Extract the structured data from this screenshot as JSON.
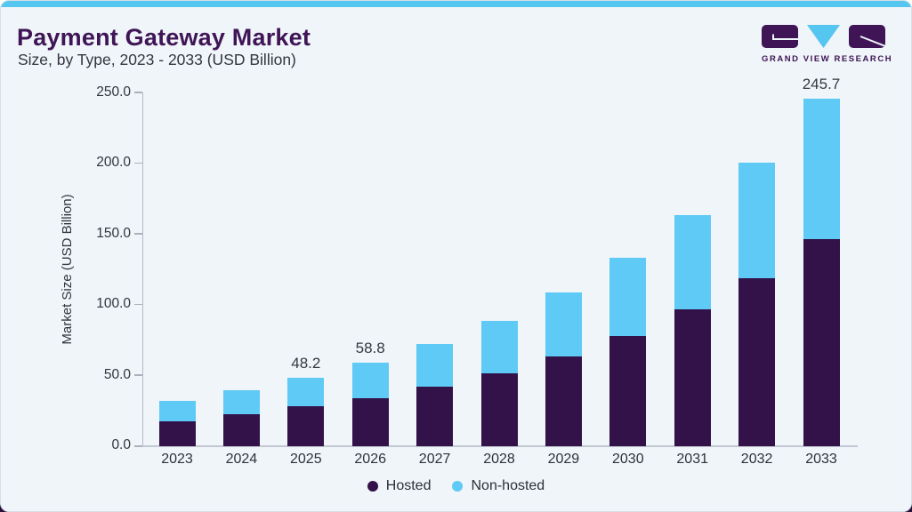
{
  "header": {
    "title": "Payment Gateway Market",
    "subtitle": "Size, by Type, 2023 - 2033 (USD Billion)"
  },
  "logo": {
    "text": "GRAND VIEW RESEARCH",
    "mark_color": "#3f1556",
    "triangle_color": "#55c6f0"
  },
  "chart_data": {
    "type": "bar",
    "stacked": true,
    "title": "Payment Gateway Market Size, by Type, 2023 - 2033 (USD Billion)",
    "categories": [
      "2023",
      "2024",
      "2025",
      "2026",
      "2027",
      "2028",
      "2029",
      "2030",
      "2031",
      "2032",
      "2033"
    ],
    "series": [
      {
        "name": "Hosted",
        "color": "#331249",
        "values": [
          17.7,
          22.6,
          27.9,
          33.8,
          42.0,
          51.5,
          63.6,
          78.0,
          96.5,
          118.5,
          146.0
        ]
      },
      {
        "name": "Non-hosted",
        "color": "#5ecaf5",
        "values": [
          14.3,
          16.7,
          20.3,
          25.0,
          30.1,
          37.0,
          44.9,
          55.1,
          66.8,
          81.8,
          99.7
        ]
      }
    ],
    "totals": [
      32.0,
      39.3,
      48.2,
      58.8,
      72.1,
      88.5,
      108.5,
      133.1,
      163.3,
      200.3,
      245.7
    ],
    "bar_labels": [
      null,
      null,
      "48.2",
      "58.8",
      null,
      null,
      null,
      null,
      null,
      null,
      "245.7"
    ],
    "ylabel": "Market Size (USD Billion)",
    "ylim": [
      0,
      250
    ],
    "ytick_labels": [
      "0.0",
      "50.0",
      "100.0",
      "150.0",
      "200.0",
      "250.0"
    ],
    "grid": false,
    "legend_position": "bottom"
  },
  "colors": {
    "accent_top_bar": "#55c6f0",
    "card_background": "#eff5f9",
    "title_text": "#3f1556",
    "hosted": "#331249",
    "non_hosted": "#5ecaf5"
  }
}
